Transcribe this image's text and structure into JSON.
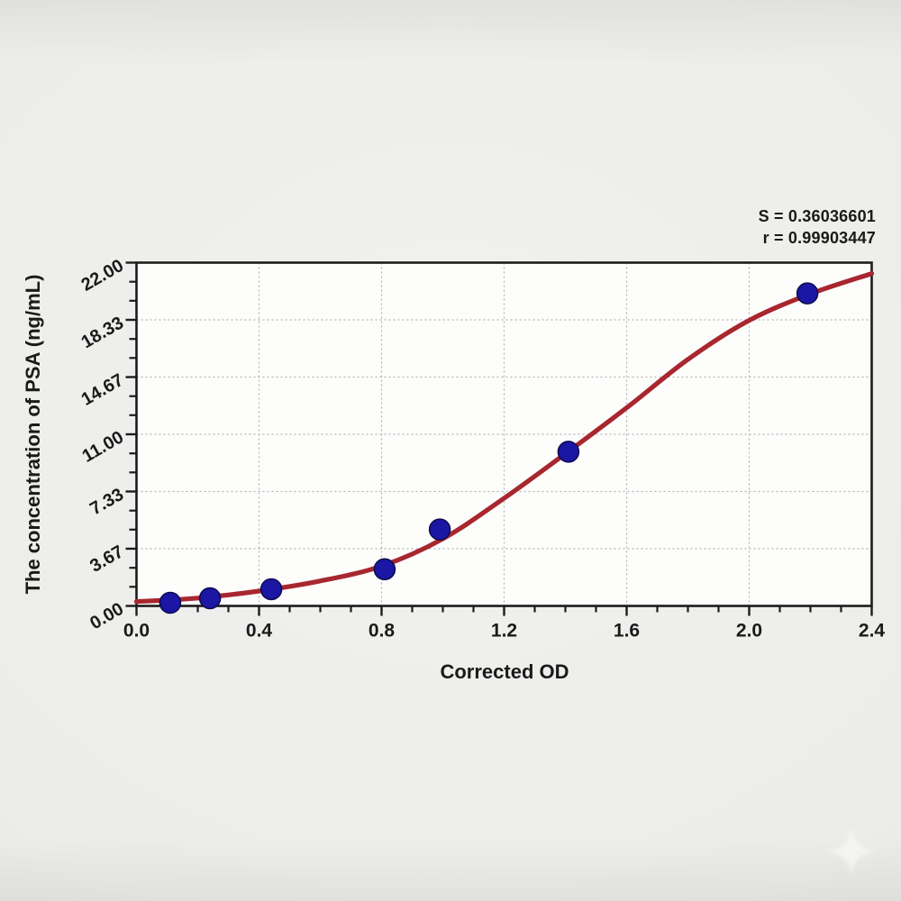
{
  "annotation": {
    "line1": "S = 0.36036601",
    "line2": "r = 0.99903447"
  },
  "watermark": {
    "icon": "sparkle-star",
    "color": "#ffffff",
    "opacity": 0.5
  },
  "chart_data": {
    "type": "scatter",
    "title": "",
    "xlabel": "Corrected OD",
    "ylabel": "The concentration of PSA (ng/mL)",
    "xlim": [
      0,
      2.4
    ],
    "ylim": [
      0,
      22
    ],
    "x_ticks": [
      0.0,
      0.4,
      0.8,
      1.2,
      1.6,
      2.0,
      2.4
    ],
    "x_tick_labels": [
      "0.0",
      "0.4",
      "0.8",
      "1.2",
      "1.6",
      "2.0",
      "2.4"
    ],
    "x_minor_step": 0.1,
    "y_ticks": [
      0,
      3.667,
      7.333,
      11,
      14.667,
      18.333,
      22
    ],
    "y_tick_labels": [
      "0.00",
      "3.67",
      "7.33",
      "11.00",
      "14.67",
      "18.33",
      "22.00"
    ],
    "y_minor_per_major": 2,
    "grid": "dotted major gridlines, both axes",
    "legend": "none",
    "points": [
      [
        0.11,
        0.2
      ],
      [
        0.24,
        0.49
      ],
      [
        0.44,
        1.07
      ],
      [
        0.81,
        2.35
      ],
      [
        0.99,
        4.9
      ],
      [
        1.41,
        9.88
      ],
      [
        2.19,
        20.03
      ]
    ],
    "fit_curve": {
      "name": "sigmoid standard-curve fit",
      "points": [
        [
          0.0,
          0.28
        ],
        [
          0.2,
          0.5
        ],
        [
          0.4,
          0.95
        ],
        [
          0.6,
          1.6
        ],
        [
          0.8,
          2.55
        ],
        [
          1.0,
          4.3
        ],
        [
          1.2,
          6.9
        ],
        [
          1.4,
          9.75
        ],
        [
          1.6,
          12.7
        ],
        [
          1.8,
          15.8
        ],
        [
          2.0,
          18.3
        ],
        [
          2.2,
          20.0
        ],
        [
          2.4,
          21.3
        ]
      ]
    },
    "stats": {
      "S": "0.36036601",
      "r": "0.99903447"
    },
    "colors": {
      "curve": "#a8272f",
      "point": "#1b16a3",
      "point_edge": "#0d0b4d",
      "text": "#1a1a1a",
      "grid": "#b4b4b4",
      "frame": "#1c1c1c",
      "plot_bg": "#fdfdfc"
    }
  }
}
